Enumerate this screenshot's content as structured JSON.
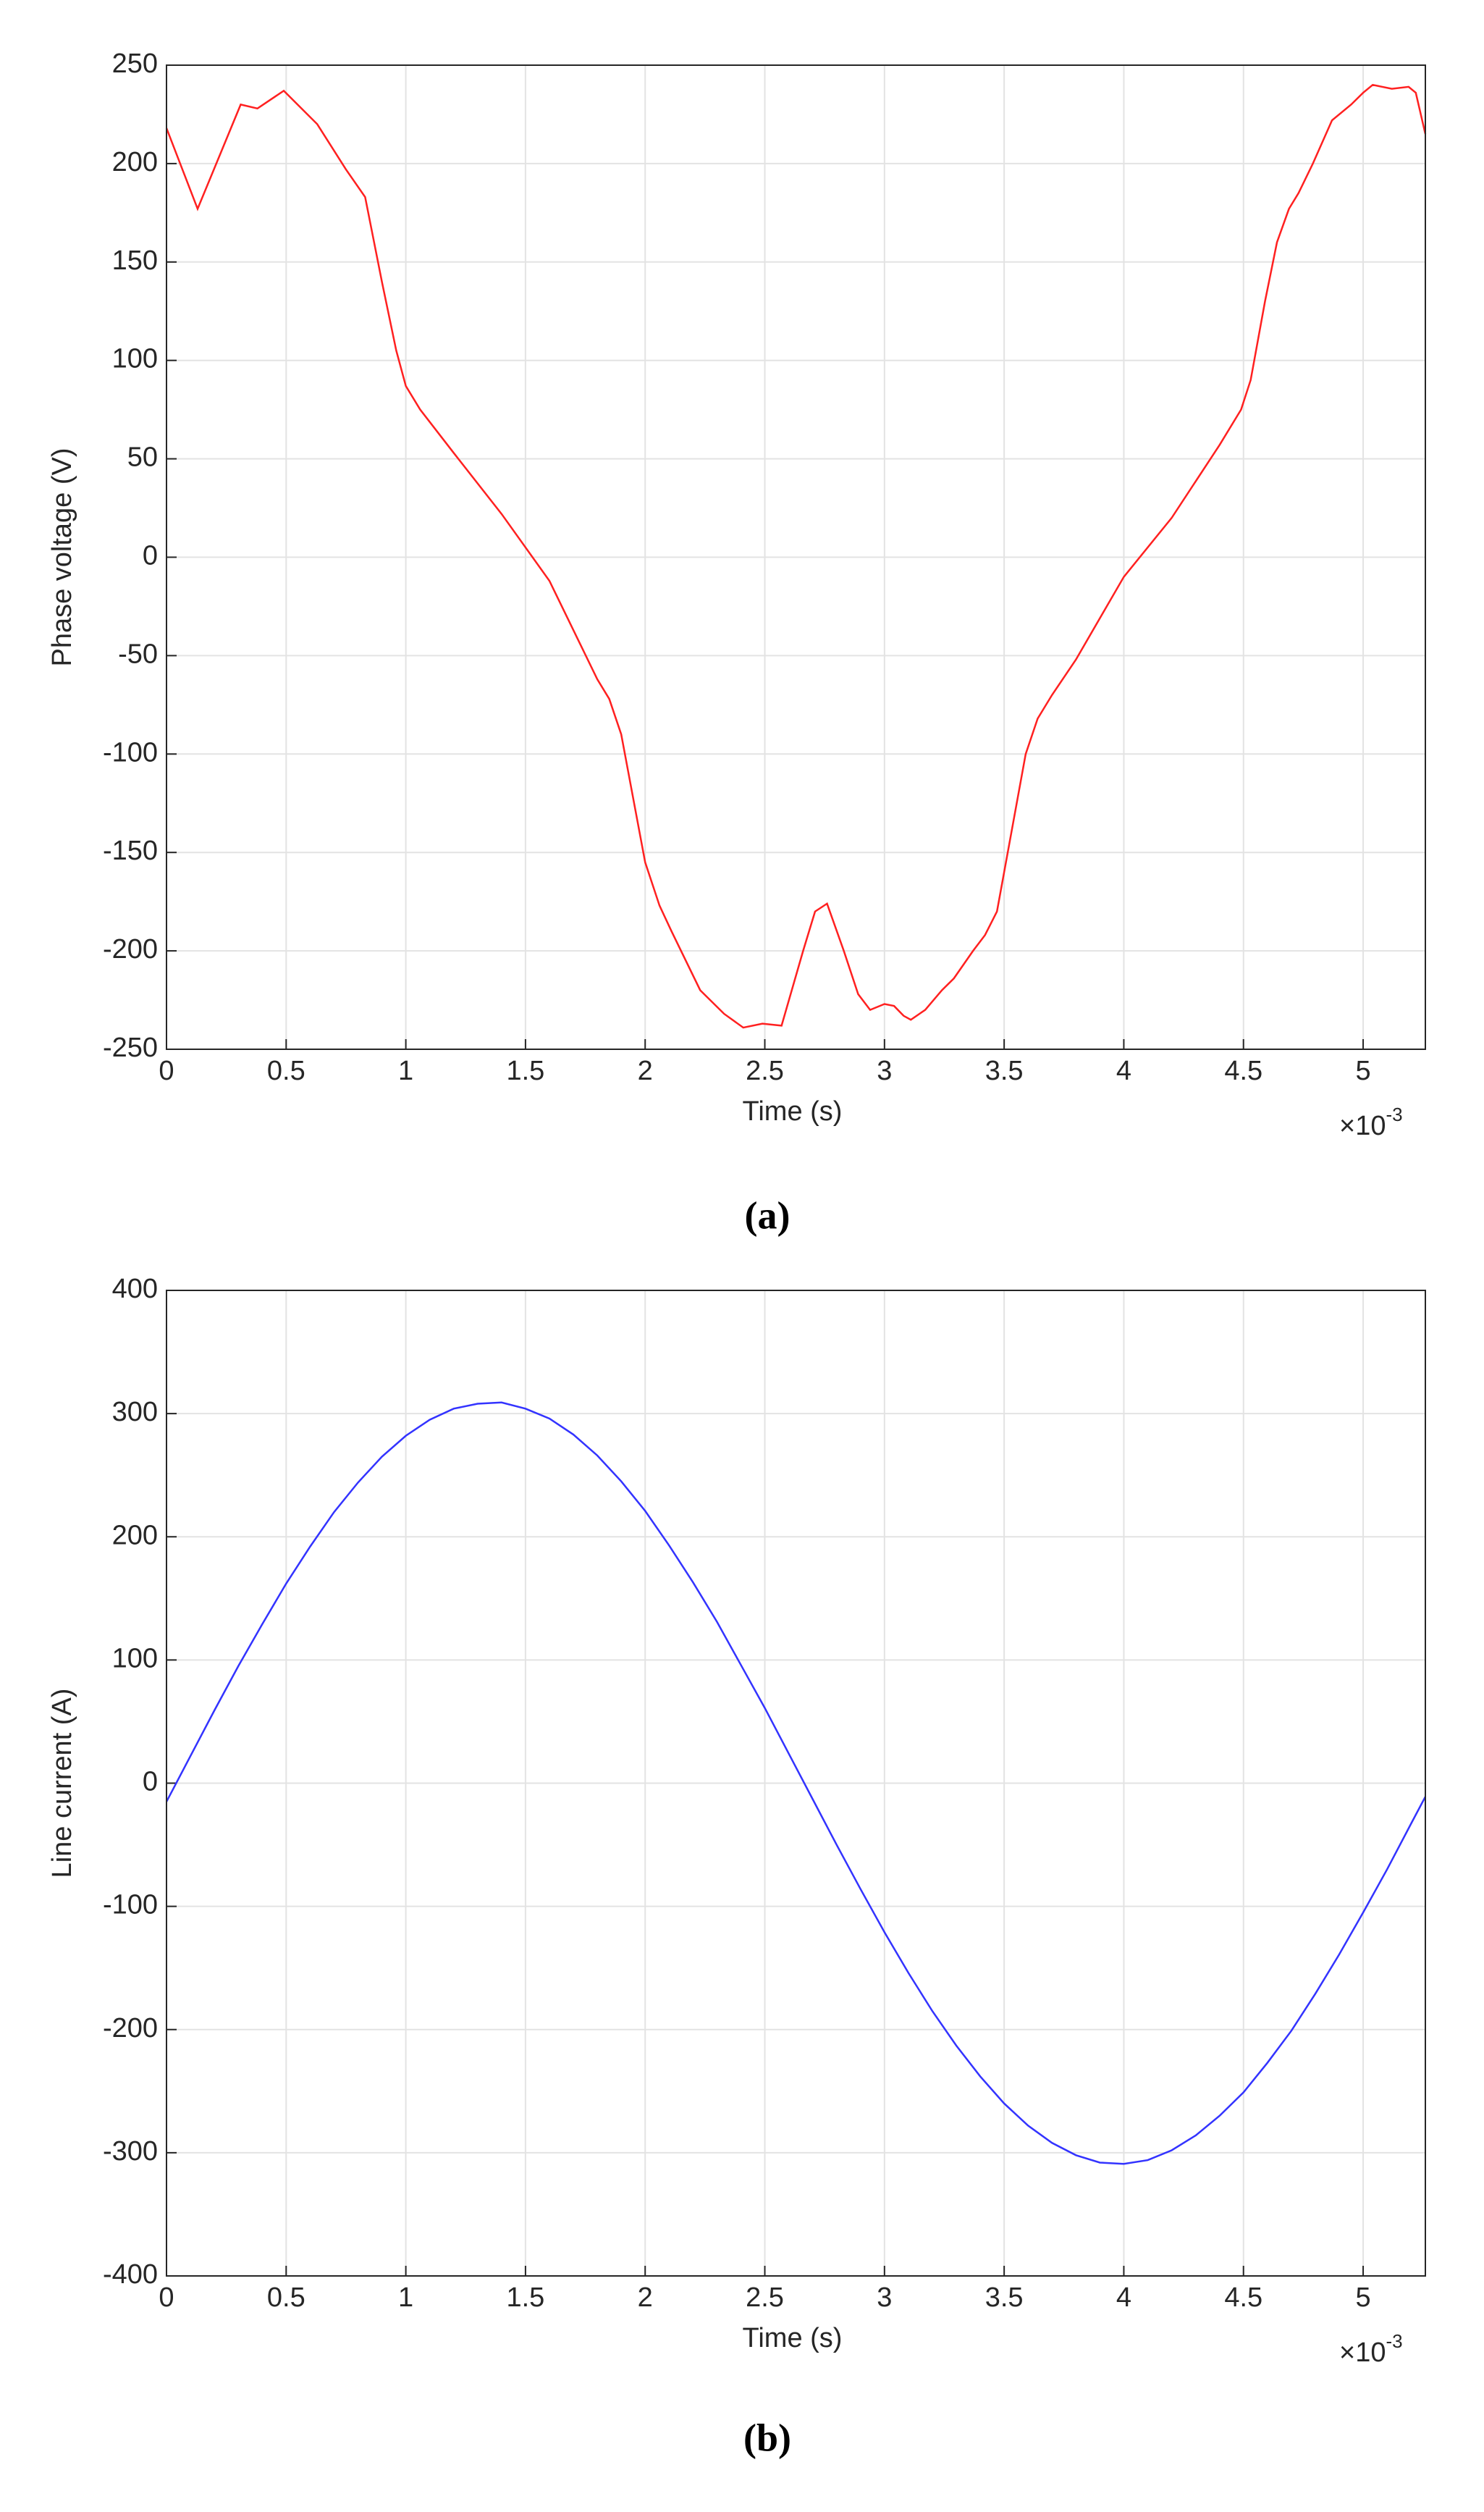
{
  "chart_data": [
    {
      "type": "line",
      "caption": "(a)",
      "xlabel": "Time (s)",
      "ylabel": "Phase voltage (V)",
      "x_multiplier": "×10",
      "x_exponent": "-3",
      "color": "#ff2020",
      "xlim": [
        0,
        5.26
      ],
      "ylim": [
        -250,
        250
      ],
      "xticks": [
        0,
        0.5,
        1,
        1.5,
        2,
        2.5,
        3,
        3.5,
        4,
        4.5,
        5
      ],
      "yticks": [
        -250,
        -200,
        -150,
        -100,
        -50,
        0,
        50,
        100,
        150,
        200,
        250
      ],
      "grid": true,
      "x": [
        0,
        0.13,
        0.31,
        0.38,
        0.49,
        0.63,
        0.75,
        0.83,
        0.9,
        0.96,
        1.0,
        1.06,
        1.2,
        1.4,
        1.6,
        1.8,
        1.85,
        1.9,
        2.0,
        2.06,
        2.11,
        2.23,
        2.33,
        2.41,
        2.49,
        2.57,
        2.66,
        2.71,
        2.76,
        2.83,
        2.89,
        2.94,
        3.0,
        3.04,
        3.08,
        3.11,
        3.17,
        3.24,
        3.29,
        3.37,
        3.42,
        3.47,
        3.53,
        3.59,
        3.64,
        3.7,
        3.8,
        4.0,
        4.2,
        4.4,
        4.49,
        4.53,
        4.59,
        4.64,
        4.69,
        4.73,
        4.79,
        4.87,
        4.95,
        5.0,
        5.04,
        5.12,
        5.19,
        5.22,
        5.26
      ],
      "values": [
        218,
        177,
        230,
        228,
        237,
        220,
        197,
        183,
        140,
        105,
        87,
        75,
        53,
        22,
        -12,
        -62,
        -72,
        -90,
        -155,
        -177,
        -190,
        -220,
        -232,
        -239,
        -237,
        -238,
        -200,
        -180,
        -176,
        -200,
        -222,
        -230,
        -227,
        -228,
        -233,
        -235,
        -230,
        -220,
        -214,
        -200,
        -192,
        -180,
        -140,
        -100,
        -82,
        -70,
        -52,
        -10,
        20,
        57,
        75,
        90,
        130,
        160,
        177,
        185,
        200,
        222,
        230,
        236,
        240,
        238,
        239,
        236,
        215
      ]
    },
    {
      "type": "line",
      "caption": "(b)",
      "xlabel": "Time (s)",
      "ylabel": "Line current (A)",
      "x_multiplier": "×10",
      "x_exponent": "-3",
      "color": "#3333ff",
      "xlim": [
        0,
        5.26
      ],
      "ylim": [
        -400,
        400
      ],
      "xticks": [
        0,
        0.5,
        1,
        1.5,
        2,
        2.5,
        3,
        3.5,
        4,
        4.5,
        5
      ],
      "yticks": [
        -400,
        -300,
        -200,
        -100,
        0,
        100,
        200,
        300,
        400
      ],
      "grid": true,
      "x": [
        0,
        0.1,
        0.2,
        0.3,
        0.4,
        0.5,
        0.6,
        0.7,
        0.8,
        0.9,
        1.0,
        1.1,
        1.2,
        1.3,
        1.4,
        1.5,
        1.6,
        1.7,
        1.8,
        1.9,
        2.0,
        2.1,
        2.2,
        2.3,
        2.4,
        2.5,
        2.6,
        2.7,
        2.8,
        2.9,
        3.0,
        3.1,
        3.2,
        3.3,
        3.4,
        3.5,
        3.6,
        3.7,
        3.8,
        3.9,
        4.0,
        4.1,
        4.2,
        4.3,
        4.4,
        4.5,
        4.6,
        4.7,
        4.8,
        4.9,
        5.0,
        5.1,
        5.2,
        5.26
      ],
      "values": [
        -15,
        22,
        59,
        95,
        129,
        162,
        192,
        220,
        244,
        265,
        282,
        295,
        304,
        308,
        309,
        304,
        296,
        283,
        266,
        245,
        221,
        193,
        163,
        131,
        96,
        61,
        24,
        -13,
        -50,
        -86,
        -121,
        -154,
        -185,
        -213,
        -238,
        -260,
        -278,
        -292,
        -302,
        -308,
        -309,
        -306,
        -298,
        -286,
        -270,
        -251,
        -227,
        -201,
        -171,
        -139,
        -105,
        -70,
        -33,
        -11
      ]
    }
  ]
}
